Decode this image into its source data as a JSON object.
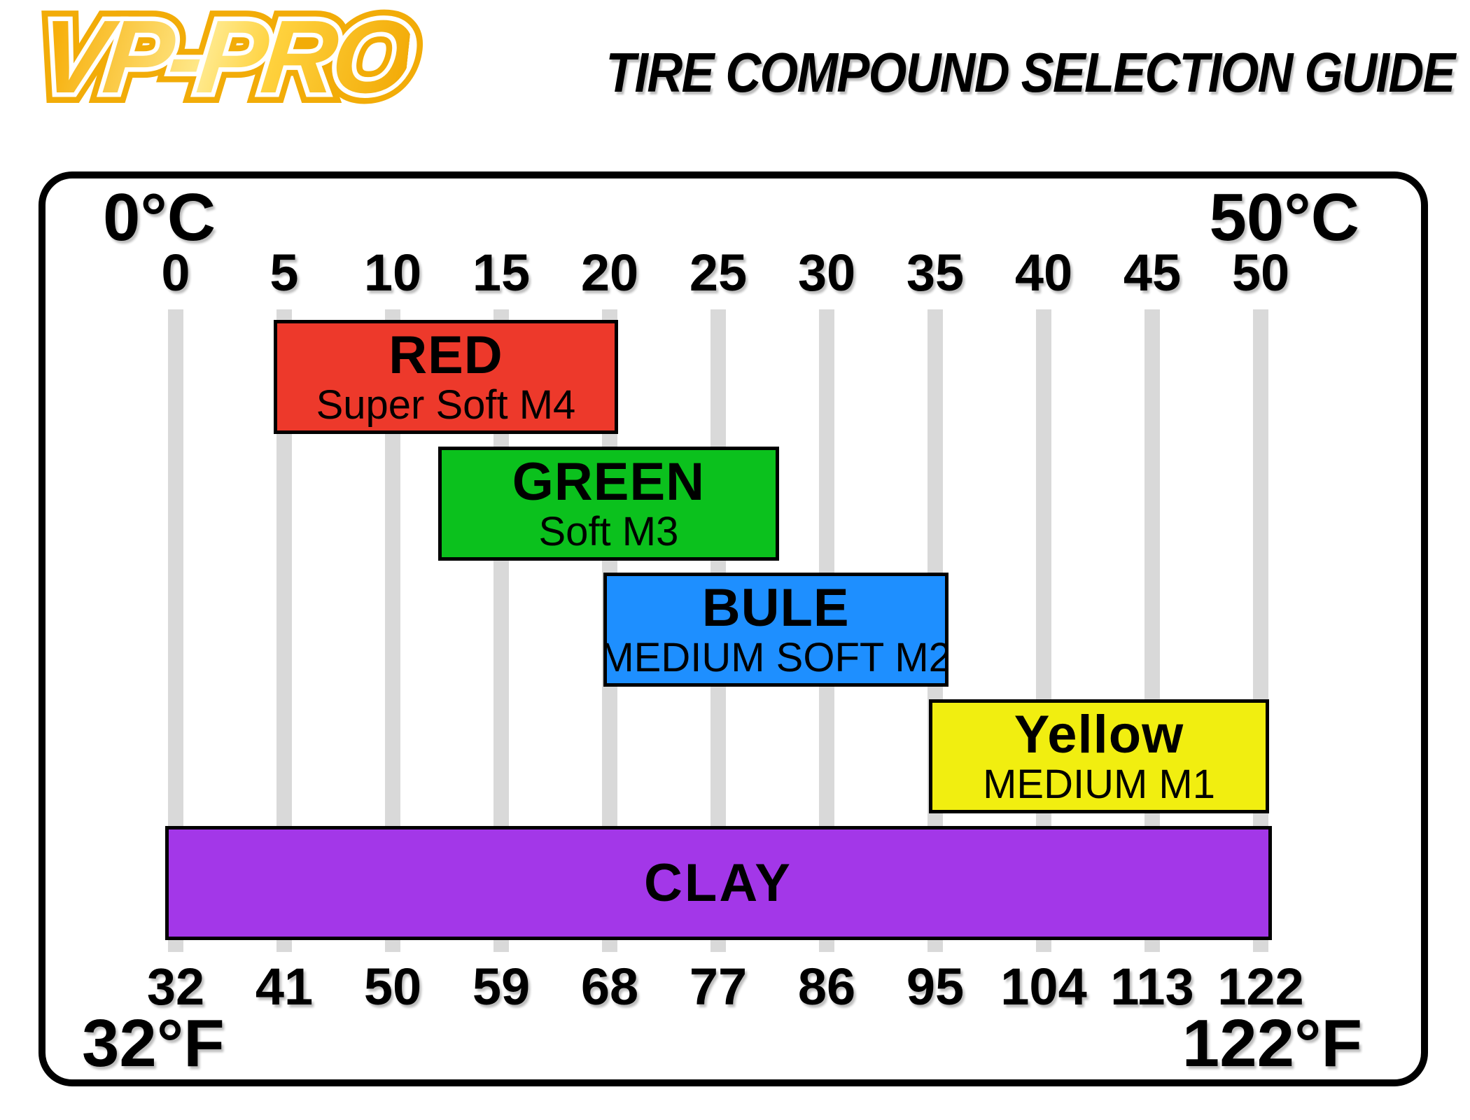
{
  "logo": {
    "text": "VP-PRO"
  },
  "title": "TIRE COMPOUND SELECTION GUIDE",
  "axis": {
    "top_left_label": "0°C",
    "top_right_label": "50°C",
    "bottom_left_label": "32°F",
    "bottom_right_label": "122°F",
    "celsius_ticks": [
      0,
      5,
      10,
      15,
      20,
      25,
      30,
      35,
      40,
      45,
      50
    ],
    "fahrenheit_ticks": [
      32,
      41,
      50,
      59,
      68,
      77,
      86,
      95,
      104,
      113,
      122
    ]
  },
  "compounds": [
    {
      "id": "red",
      "title": "RED",
      "subtitle": "Super Soft M4",
      "color": "#ed392b",
      "start_c": 4.5,
      "end_c": 20.4,
      "row": 0
    },
    {
      "id": "green",
      "title": "GREEN",
      "subtitle": "Soft M3",
      "color": "#0bc11d",
      "start_c": 12.1,
      "end_c": 27.8,
      "row": 1
    },
    {
      "id": "blue",
      "title": "BULE",
      "subtitle": "MEDIUM SOFT M2",
      "color": "#1e8fff",
      "start_c": 19.7,
      "end_c": 35.6,
      "row": 2
    },
    {
      "id": "yellow",
      "title": "Yellow",
      "subtitle": "MEDIUM M1",
      "color": "#f1ee10",
      "start_c": 34.7,
      "end_c": 50.4,
      "row": 3
    },
    {
      "id": "clay",
      "title": "CLAY",
      "subtitle": "",
      "color": "#a337e8",
      "start_c": -0.5,
      "end_c": 50.5,
      "row": 4
    }
  ],
  "grid_color": "#d9d9d9",
  "chart_data": {
    "type": "bar",
    "orientation": "horizontal-range",
    "title": "TIRE COMPOUND SELECTION GUIDE",
    "x_axis_top": {
      "unit": "°C",
      "range": [
        0,
        50
      ],
      "ticks": [
        0,
        5,
        10,
        15,
        20,
        25,
        30,
        35,
        40,
        45,
        50
      ]
    },
    "x_axis_bottom": {
      "unit": "°F",
      "range": [
        32,
        122
      ],
      "ticks": [
        32,
        41,
        50,
        59,
        68,
        77,
        86,
        95,
        104,
        113,
        122
      ]
    },
    "series": [
      {
        "name": "RED",
        "compound": "Super Soft M4",
        "range_c": [
          5,
          20
        ],
        "range_f": [
          41,
          68
        ],
        "color": "#ed392b"
      },
      {
        "name": "GREEN",
        "compound": "Soft M3",
        "range_c": [
          12,
          28
        ],
        "range_f": [
          54,
          82
        ],
        "color": "#0bc11d"
      },
      {
        "name": "BULE",
        "compound": "MEDIUM SOFT M2",
        "range_c": [
          20,
          36
        ],
        "range_f": [
          68,
          97
        ],
        "color": "#1e8fff"
      },
      {
        "name": "Yellow",
        "compound": "MEDIUM M1",
        "range_c": [
          35,
          50
        ],
        "range_f": [
          95,
          122
        ],
        "color": "#f1ee10"
      },
      {
        "name": "CLAY",
        "compound": "",
        "range_c": [
          0,
          50
        ],
        "range_f": [
          32,
          122
        ],
        "color": "#a337e8"
      }
    ],
    "grid": true,
    "legend": false
  }
}
